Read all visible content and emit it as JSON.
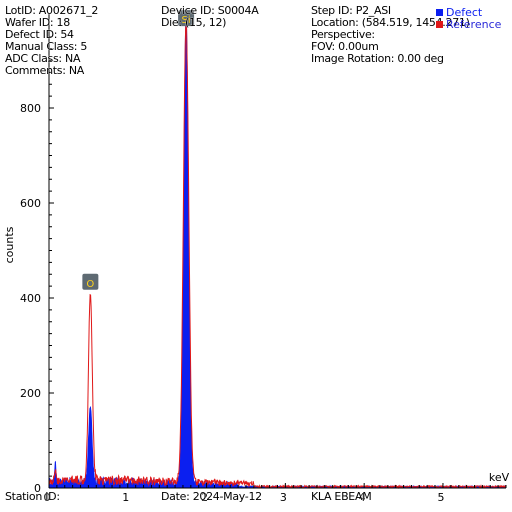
{
  "header": {
    "col1": [
      "LotID: A002671_2",
      "Wafer ID: 18",
      "Defect ID: 54",
      "Manual Class: 5",
      "ADC Class: NA",
      "Comments: NA"
    ],
    "col2": [
      "Device ID: S0004A",
      "Die: (15, 12)"
    ],
    "col3": [
      "Step ID: P2_ASI",
      "Location: (584.519, 1454.271)",
      "Perspective:",
      "FOV: 0.00um",
      "Image Rotation: 0.00 deg"
    ]
  },
  "footer": {
    "station": "Station ID:",
    "date": "Date: 2024-May-12",
    "tool": "KLA EBEAM"
  },
  "colors": {
    "defect": "#0b1ff0",
    "reference": "#e01818",
    "peak_label_bg": "#5e6a72",
    "peak_label_text": "#ffd21a"
  },
  "chart_data": {
    "type": "line",
    "xlabel": "keV",
    "ylabel": "counts",
    "xlim": [
      0,
      5.8
    ],
    "ylim": [
      0,
      1000
    ],
    "x_ticks": [
      "0",
      "1",
      "2",
      "3",
      "4",
      "5"
    ],
    "y_ticks": [
      "0",
      "200",
      "400",
      "600",
      "800"
    ],
    "legend": {
      "placement": "top-right"
    },
    "series": [
      {
        "name": "Defect",
        "color": "#0b1ff0",
        "style": "filled",
        "peaks": [
          {
            "x": 0.0,
            "height": 6,
            "sigma": 0.02
          },
          {
            "x": 0.08,
            "height": 40,
            "sigma": 0.012
          },
          {
            "x": 0.525,
            "height": 160,
            "sigma": 0.022
          },
          {
            "x": 1.74,
            "height": 1000,
            "sigma": 0.031
          }
        ],
        "background": {
          "level": 18,
          "until": 2.4
        }
      },
      {
        "name": "Reference",
        "color": "#e01818",
        "style": "line",
        "peaks": [
          {
            "x": 0.0,
            "height": 5,
            "sigma": 0.02
          },
          {
            "x": 0.08,
            "height": 28,
            "sigma": 0.012
          },
          {
            "x": 0.525,
            "height": 398,
            "sigma": 0.024
          },
          {
            "x": 1.74,
            "height": 970,
            "sigma": 0.034
          }
        ],
        "background": {
          "level": 20,
          "until": 2.6
        }
      }
    ],
    "annotations": [
      {
        "label": "O",
        "x": 0.525,
        "y": 430
      },
      {
        "label": "Si",
        "x": 1.74,
        "y": 985
      }
    ]
  }
}
